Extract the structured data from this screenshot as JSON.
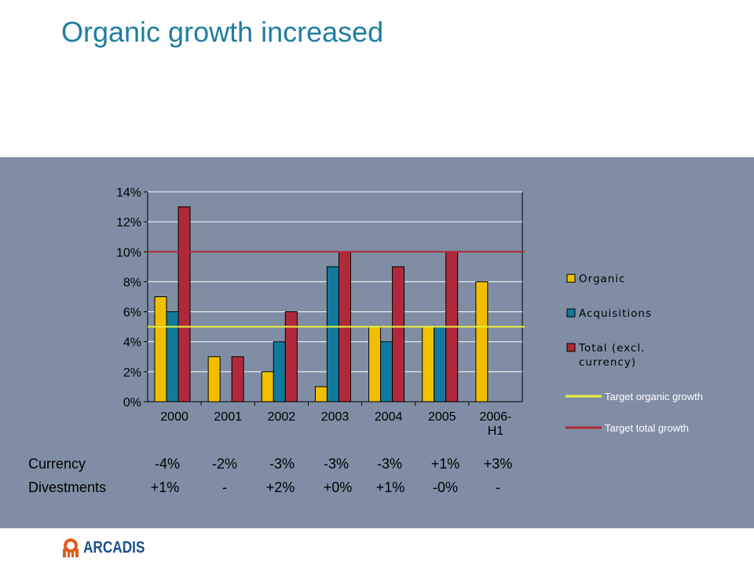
{
  "title": "Organic growth increased",
  "colors": {
    "organic": "#f0c000",
    "acquisitions": "#117a9c",
    "total": "#b0293a",
    "target_organic": "#e6f03c",
    "target_total": "#b0293a",
    "panel": "#7f8ea4",
    "plot": "#7f8ea4",
    "title": "#1f7ea1"
  },
  "chart_data": {
    "type": "bar",
    "categories": [
      "2000",
      "2001",
      "2002",
      "2003",
      "2004",
      "2005",
      "2006-H1"
    ],
    "category_labels": [
      [
        "2000"
      ],
      [
        "2001"
      ],
      [
        "2002"
      ],
      [
        "2003"
      ],
      [
        "2004"
      ],
      [
        "2005"
      ],
      [
        "2006-",
        "H1"
      ]
    ],
    "series": [
      {
        "name": "Organic",
        "color": "#f0c000",
        "values": [
          7,
          3,
          2,
          1,
          5,
          5,
          8
        ]
      },
      {
        "name": "Acquisitions",
        "color": "#117a9c",
        "values": [
          6,
          null,
          4,
          9,
          4,
          5,
          null
        ]
      },
      {
        "name": "Total (excl. currency)",
        "legend_lines": [
          "Total (excl.",
          "currency)"
        ],
        "color": "#b0293a",
        "values": [
          13,
          3,
          6,
          10,
          9,
          10,
          null
        ]
      }
    ],
    "ylim": [
      0,
      14
    ],
    "yticks": [
      0,
      2,
      4,
      6,
      8,
      10,
      12,
      14
    ],
    "ytick_labels": [
      "0%",
      "2%",
      "4%",
      "6%",
      "8%",
      "10%",
      "12%",
      "14%"
    ],
    "grid": true,
    "legend_position": "right",
    "reference_lines": [
      {
        "name": "Target organic growth",
        "value": 5,
        "color": "#e6f03c"
      },
      {
        "name": "Target total growth",
        "value": 10,
        "color": "#b0293a"
      }
    ]
  },
  "table": {
    "rows": [
      {
        "label": "Currency",
        "values": [
          "-4%",
          "-2%",
          "-3%",
          "-3%",
          "-3%",
          "+1%",
          "+3%"
        ]
      },
      {
        "label": "Divestments",
        "values": [
          "+1%",
          "-",
          "+2%",
          "+0%",
          "+1%",
          "-0%",
          "-"
        ]
      }
    ]
  },
  "logo": {
    "text": "ARCADIS"
  }
}
